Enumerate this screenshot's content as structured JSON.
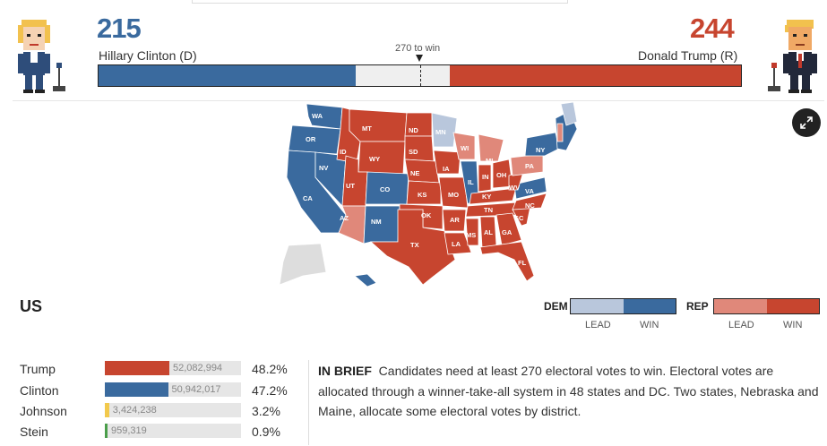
{
  "header": {
    "dem": {
      "votes": "215",
      "name": "Hillary Clinton (D)"
    },
    "rep": {
      "votes": "244",
      "name": "Donald Trump (R)"
    },
    "threshold_label": "270 to win",
    "electoral_total": 538,
    "threshold": 270
  },
  "colors": {
    "dem_win": "#3a6a9e",
    "dem_lead": "#b9c7dc",
    "rep_win": "#c7452f",
    "rep_lead": "#e0887a",
    "undecided": "#efefef"
  },
  "map": {
    "labels": [
      "WA",
      "OR",
      "CA",
      "NV",
      "ID",
      "MT",
      "WY",
      "UT",
      "AZ",
      "CO",
      "NM",
      "ND",
      "SD",
      "NE",
      "KS",
      "OK",
      "TX",
      "MN",
      "IA",
      "MO",
      "AR",
      "LA",
      "WI",
      "IL",
      "MI",
      "IN",
      "OH",
      "KY",
      "TN",
      "MS",
      "AL",
      "GA",
      "FL",
      "SC",
      "NC",
      "VA",
      "WV",
      "PA",
      "NY"
    ]
  },
  "region": "US",
  "legend": {
    "dem_label": "DEM",
    "rep_label": "REP",
    "lead_label": "LEAD",
    "win_label": "WIN"
  },
  "results": [
    {
      "name": "Trump",
      "votes": "52,082,994",
      "pct": "48.2%",
      "share": 0.482,
      "color": "#c7452f"
    },
    {
      "name": "Clinton",
      "votes": "50,942,017",
      "pct": "47.2%",
      "share": 0.472,
      "color": "#3a6a9e"
    },
    {
      "name": "Johnson",
      "votes": "3,424,238",
      "pct": "3.2%",
      "share": 0.032,
      "color": "#f2c94c"
    },
    {
      "name": "Stein",
      "votes": "959,319",
      "pct": "0.9%",
      "share": 0.009,
      "color": "#4a9e4a"
    }
  ],
  "brief": {
    "title": "IN BRIEF",
    "text": "Candidates need at least 270 electoral votes to win. Electoral votes are allocated through a winner-take-all system in 48 states and DC. Two states, Nebraska and Maine, allocate some electoral votes by district."
  }
}
